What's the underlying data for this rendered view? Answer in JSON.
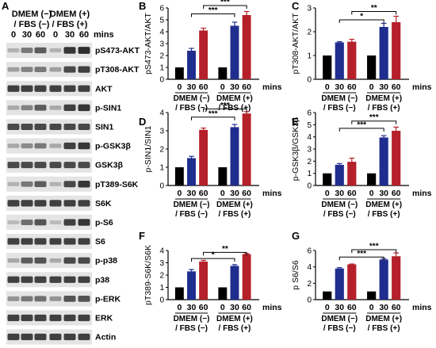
{
  "colors": {
    "black": "#000000",
    "blue": "#1f2d8f",
    "red": "#b5202a",
    "background": "#ffffff"
  },
  "western_blot": {
    "panel_letter": "A",
    "group_labels": [
      {
        "line1": "DMEM (−)",
        "line2": "/ FBS (−)"
      },
      {
        "line1": "DMEM (+)",
        "line2": "/ FBS (+)"
      }
    ],
    "time_labels": [
      "0",
      "30",
      "60",
      "0",
      "30",
      "60"
    ],
    "unit_label": "mins",
    "rows": [
      {
        "label": "pS473-AKT",
        "intensity": [
          0.25,
          0.55,
          0.7,
          0.25,
          0.9,
          0.95
        ]
      },
      {
        "label": "pT308-AKT",
        "intensity": [
          0.35,
          0.5,
          0.55,
          0.35,
          0.8,
          0.85
        ]
      },
      {
        "label": "AKT",
        "intensity": [
          0.85,
          0.85,
          0.85,
          0.85,
          0.85,
          0.85
        ]
      },
      {
        "label": "p-SIN1",
        "intensity": [
          0.3,
          0.5,
          0.7,
          0.3,
          0.85,
          0.9
        ]
      },
      {
        "label": "SIN1",
        "intensity": [
          0.8,
          0.8,
          0.8,
          0.8,
          0.8,
          0.8
        ]
      },
      {
        "label": "p-GSK3β",
        "intensity": [
          0.3,
          0.45,
          0.55,
          0.3,
          0.85,
          0.9
        ]
      },
      {
        "label": "GSK3β",
        "intensity": [
          0.8,
          0.8,
          0.8,
          0.8,
          0.8,
          0.8
        ]
      },
      {
        "label": "pT389-S6K",
        "intensity": [
          0.25,
          0.55,
          0.7,
          0.25,
          0.8,
          0.9
        ]
      },
      {
        "label": "S6K",
        "intensity": [
          0.85,
          0.85,
          0.85,
          0.85,
          0.85,
          0.85
        ]
      },
      {
        "label": "p-S6",
        "intensity": [
          0.2,
          0.6,
          0.75,
          0.2,
          0.85,
          0.9
        ]
      },
      {
        "label": "S6",
        "intensity": [
          0.85,
          0.85,
          0.85,
          0.85,
          0.85,
          0.85
        ]
      },
      {
        "label": "p-p38",
        "intensity": [
          0.3,
          0.7,
          0.75,
          0.3,
          0.8,
          0.8
        ]
      },
      {
        "label": "p38",
        "intensity": [
          0.85,
          0.85,
          0.85,
          0.85,
          0.85,
          0.85
        ]
      },
      {
        "label": "p-ERK",
        "intensity": [
          0.4,
          0.55,
          0.6,
          0.4,
          0.75,
          0.75
        ]
      },
      {
        "label": "ERK",
        "intensity": [
          0.85,
          0.85,
          0.85,
          0.85,
          0.85,
          0.85
        ]
      },
      {
        "label": "Actin",
        "intensity": [
          0.85,
          0.85,
          0.85,
          0.85,
          0.85,
          0.85
        ]
      }
    ]
  },
  "chart_data": [
    {
      "panel_letter": "B",
      "type": "bar",
      "ylabel": "pS473-AKT/AKT",
      "ylim": [
        0,
        6
      ],
      "yticks": [
        0,
        1,
        2,
        3,
        4,
        5,
        6
      ],
      "categories": [
        "0",
        "30",
        "60",
        "0",
        "30",
        "60"
      ],
      "values": [
        1.0,
        2.4,
        4.1,
        1.0,
        4.5,
        5.4
      ],
      "errors": [
        0,
        0.2,
        0.2,
        0,
        0.3,
        0.3
      ],
      "bar_colors": [
        "black",
        "blue",
        "red",
        "black",
        "blue",
        "red"
      ],
      "groups": [
        {
          "line1": "DMEM (−)",
          "line2": "/ FBS (−)"
        },
        {
          "line1": "DMEM (+)",
          "line2": "/ FBS (+)"
        }
      ],
      "unit_label": "mins",
      "significance": [
        {
          "from": 1,
          "to": 4,
          "label": "***",
          "y": 5.5
        },
        {
          "from": 2,
          "to": 5,
          "label": "***",
          "y": 6.2
        }
      ]
    },
    {
      "panel_letter": "C",
      "type": "bar",
      "ylabel": "pT308-AKT/AKT",
      "ylim": [
        0,
        3
      ],
      "yticks": [
        0,
        1,
        2,
        3
      ],
      "categories": [
        "0",
        "30",
        "60",
        "0",
        "30",
        "60"
      ],
      "values": [
        1.0,
        1.55,
        1.58,
        1.0,
        2.2,
        2.4
      ],
      "errors": [
        0,
        0.03,
        0.1,
        0,
        0.15,
        0.25
      ],
      "bar_colors": [
        "black",
        "blue",
        "red",
        "black",
        "blue",
        "red"
      ],
      "groups": [
        {
          "line1": "DMEM (−)",
          "line2": "/ FBS (−)"
        },
        {
          "line1": "DMEM (+)",
          "line2": "/ FBS (+)"
        }
      ],
      "unit_label": "mins",
      "significance": [
        {
          "from": 1,
          "to": 4,
          "label": "*",
          "y": 2.5
        },
        {
          "from": 2,
          "to": 5,
          "label": "**",
          "y": 2.85
        }
      ]
    },
    {
      "panel_letter": "D",
      "type": "bar",
      "ylabel": "p-SIN1/SIN1",
      "ylim": [
        0,
        4
      ],
      "yticks": [
        0,
        1,
        2,
        3,
        4
      ],
      "categories": [
        "0",
        "30",
        "60",
        "0",
        "30",
        "60"
      ],
      "values": [
        1.0,
        1.5,
        3.05,
        1.0,
        3.2,
        3.95
      ],
      "errors": [
        0,
        0.1,
        0.1,
        0,
        0.15,
        0.1
      ],
      "bar_colors": [
        "black",
        "blue",
        "red",
        "black",
        "blue",
        "red"
      ],
      "groups": [
        {
          "line1": "DMEM (−)",
          "line2": "/ FBS (−)"
        },
        {
          "line1": "DMEM (+)",
          "line2": "/ FBS (+)"
        }
      ],
      "unit_label": "mins",
      "significance": [
        {
          "from": 1,
          "to": 4,
          "label": "***",
          "y": 3.75
        },
        {
          "from": 2,
          "to": 5,
          "label": "***",
          "y": 4.2
        }
      ]
    },
    {
      "panel_letter": "E",
      "type": "bar",
      "ylabel": "p-GSK3β/GSK3β",
      "ylim": [
        0,
        6
      ],
      "yticks": [
        0,
        1,
        2,
        3,
        4,
        5,
        6
      ],
      "categories": [
        "0",
        "30",
        "60",
        "0",
        "30",
        "60"
      ],
      "values": [
        1.0,
        1.7,
        1.95,
        1.0,
        3.95,
        4.5
      ],
      "errors": [
        0,
        0.1,
        0.3,
        0,
        0.15,
        0.3
      ],
      "bar_colors": [
        "black",
        "blue",
        "red",
        "black",
        "blue",
        "red"
      ],
      "groups": [
        {
          "line1": "DMEM (−)",
          "line2": "/ FBS (−)"
        },
        {
          "line1": "DMEM (+)",
          "line2": "/ FBS (+)"
        }
      ],
      "unit_label": "mins",
      "significance": [
        {
          "from": 1,
          "to": 4,
          "label": "***",
          "y": 4.7
        },
        {
          "from": 2,
          "to": 5,
          "label": "***",
          "y": 5.3
        }
      ]
    },
    {
      "panel_letter": "F",
      "type": "bar",
      "ylabel": "pT389-S6K/S6K",
      "ylim": [
        0,
        4
      ],
      "yticks": [
        0,
        1,
        2,
        3,
        4
      ],
      "categories": [
        "0",
        "30",
        "60",
        "0",
        "30",
        "60"
      ],
      "values": [
        1.0,
        2.3,
        3.1,
        1.0,
        2.75,
        3.7
      ],
      "errors": [
        0,
        0.15,
        0.1,
        0,
        0.1,
        0.05
      ],
      "bar_colors": [
        "black",
        "blue",
        "red",
        "black",
        "blue",
        "red"
      ],
      "groups": [
        {
          "line1": "DMEM (−)",
          "line2": "/ FBS (−)"
        },
        {
          "line1": "DMEM (+)",
          "line2": "/ FBS (+)"
        }
      ],
      "unit_label": "mins",
      "significance": [
        {
          "from": 1,
          "to": 4,
          "label": "*",
          "y": 3.35
        },
        {
          "from": 2,
          "to": 5,
          "label": "**",
          "y": 3.85
        }
      ]
    },
    {
      "panel_letter": "G",
      "type": "bar",
      "ylabel": "p S6/S6",
      "ylim": [
        0,
        6
      ],
      "yticks": [
        0,
        2,
        4,
        6
      ],
      "categories": [
        "0",
        "30",
        "60",
        "0",
        "30",
        "60"
      ],
      "values": [
        1.0,
        3.8,
        4.3,
        1.0,
        4.9,
        5.3
      ],
      "errors": [
        0,
        0.1,
        0.05,
        0,
        0.1,
        0.4
      ],
      "bar_colors": [
        "black",
        "blue",
        "red",
        "black",
        "blue",
        "red"
      ],
      "groups": [
        {
          "line1": "DMEM (−)",
          "line2": "/ FBS (−)"
        },
        {
          "line1": "DMEM (+)",
          "line2": "/ FBS (+)"
        }
      ],
      "unit_label": "mins",
      "significance": [
        {
          "from": 1,
          "to": 4,
          "label": "***",
          "y": 5.2
        },
        {
          "from": 2,
          "to": 5,
          "label": "***",
          "y": 6.1
        }
      ]
    }
  ]
}
